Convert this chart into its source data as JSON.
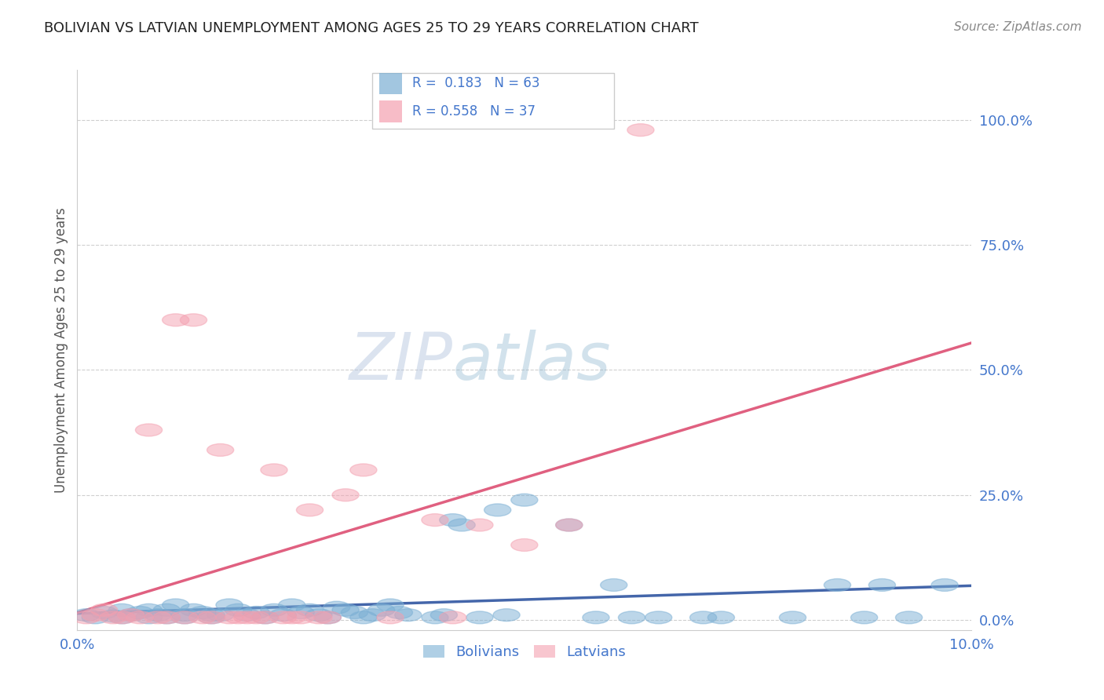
{
  "title": "BOLIVIAN VS LATVIAN UNEMPLOYMENT AMONG AGES 25 TO 29 YEARS CORRELATION CHART",
  "source_text": "Source: ZipAtlas.com",
  "ylabel": "Unemployment Among Ages 25 to 29 years",
  "xlim": [
    0.0,
    0.1
  ],
  "ylim": [
    -0.02,
    1.1
  ],
  "yticks": [
    0.0,
    0.25,
    0.5,
    0.75,
    1.0
  ],
  "ytick_labels": [
    "0.0%",
    "25.0%",
    "50.0%",
    "75.0%",
    "100.0%"
  ],
  "blue_color": "#7BAFD4",
  "pink_color": "#F4A0B0",
  "blue_line_color": "#4466AA",
  "pink_line_color": "#E06080",
  "blue_label": "Bolivians",
  "pink_label": "Latvians",
  "R_blue": 0.183,
  "N_blue": 63,
  "R_pink": 0.558,
  "N_pink": 37,
  "watermark_zip": "ZIP",
  "watermark_atlas": "atlas",
  "bg_color": "#FFFFFF",
  "grid_color": "#BBBBBB",
  "title_color": "#222222",
  "axis_label_color": "#555555",
  "tick_label_color": "#4477CC",
  "source_color": "#888888",
  "blue_scatter_x": [
    0.001,
    0.002,
    0.003,
    0.004,
    0.005,
    0.005,
    0.006,
    0.007,
    0.008,
    0.008,
    0.009,
    0.01,
    0.01,
    0.011,
    0.012,
    0.012,
    0.013,
    0.014,
    0.015,
    0.015,
    0.016,
    0.017,
    0.018,
    0.019,
    0.02,
    0.021,
    0.022,
    0.023,
    0.024,
    0.025,
    0.026,
    0.027,
    0.028,
    0.029,
    0.03,
    0.031,
    0.032,
    0.033,
    0.034,
    0.035,
    0.036,
    0.037,
    0.04,
    0.041,
    0.042,
    0.043,
    0.045,
    0.047,
    0.048,
    0.05,
    0.055,
    0.058,
    0.06,
    0.062,
    0.065,
    0.07,
    0.072,
    0.08,
    0.085,
    0.088,
    0.09,
    0.093,
    0.097
  ],
  "blue_scatter_y": [
    0.01,
    0.005,
    0.015,
    0.008,
    0.005,
    0.02,
    0.01,
    0.015,
    0.005,
    0.02,
    0.01,
    0.02,
    0.005,
    0.03,
    0.01,
    0.005,
    0.02,
    0.015,
    0.01,
    0.005,
    0.01,
    0.03,
    0.02,
    0.01,
    0.015,
    0.005,
    0.02,
    0.01,
    0.03,
    0.015,
    0.02,
    0.01,
    0.005,
    0.025,
    0.02,
    0.015,
    0.005,
    0.01,
    0.02,
    0.03,
    0.015,
    0.01,
    0.005,
    0.01,
    0.2,
    0.19,
    0.005,
    0.22,
    0.01,
    0.24,
    0.19,
    0.005,
    0.07,
    0.005,
    0.005,
    0.005,
    0.005,
    0.005,
    0.07,
    0.005,
    0.07,
    0.005,
    0.07
  ],
  "pink_scatter_x": [
    0.001,
    0.002,
    0.003,
    0.004,
    0.005,
    0.006,
    0.007,
    0.008,
    0.009,
    0.01,
    0.011,
    0.012,
    0.013,
    0.014,
    0.015,
    0.016,
    0.017,
    0.018,
    0.019,
    0.02,
    0.021,
    0.022,
    0.023,
    0.024,
    0.025,
    0.026,
    0.027,
    0.028,
    0.03,
    0.032,
    0.035,
    0.04,
    0.042,
    0.045,
    0.05,
    0.055,
    0.063
  ],
  "pink_scatter_y": [
    0.005,
    0.01,
    0.02,
    0.005,
    0.005,
    0.01,
    0.005,
    0.38,
    0.005,
    0.005,
    0.6,
    0.005,
    0.6,
    0.005,
    0.005,
    0.34,
    0.005,
    0.005,
    0.005,
    0.005,
    0.005,
    0.3,
    0.005,
    0.005,
    0.005,
    0.22,
    0.005,
    0.005,
    0.25,
    0.3,
    0.005,
    0.2,
    0.005,
    0.19,
    0.15,
    0.19,
    0.98
  ]
}
